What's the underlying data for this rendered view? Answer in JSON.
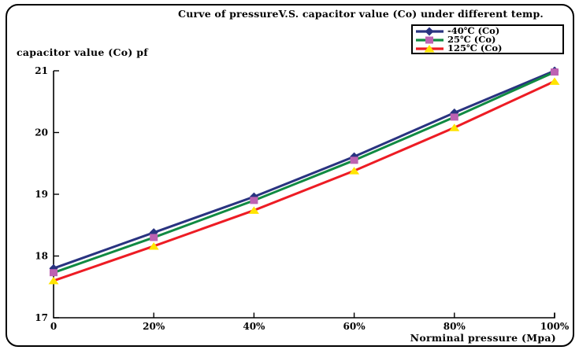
{
  "window": {
    "background": "#ffffff",
    "frame_border_color": "#000000"
  },
  "chart_data": {
    "type": "line",
    "title": "Curve of pressureV.S. capacitor value (Co) under different temp.",
    "xlabel": "Norminal pressure (Mpa)",
    "ylabel": "capacitor value (Co) pf",
    "x_tick_labels": [
      "0",
      "20%",
      "40%",
      "60%",
      "80%",
      "100%"
    ],
    "x_values": [
      0,
      20,
      40,
      60,
      80,
      100
    ],
    "y_ticks": [
      17,
      18,
      19,
      20,
      21
    ],
    "ylim": [
      17,
      21
    ],
    "grid": false,
    "legend_position": "top-right",
    "axis_color": "#000000",
    "series": [
      {
        "name": "-40℃ (Co)",
        "line_color": "#293380",
        "marker": "diamond",
        "marker_color": "#293380",
        "values": [
          17.8,
          18.38,
          18.96,
          19.61,
          20.32,
          21.0
        ]
      },
      {
        "name": "25℃ (Co)",
        "line_color": "#108a42",
        "marker": "square",
        "marker_color": "#bd62b2",
        "values": [
          17.73,
          18.3,
          18.9,
          19.55,
          20.25,
          20.98
        ]
      },
      {
        "name": "125℃ (Co)",
        "line_color": "#ed1c24",
        "marker": "triangle",
        "marker_color": "#ffe400",
        "values": [
          17.6,
          18.16,
          18.74,
          19.38,
          20.08,
          20.83
        ]
      }
    ]
  }
}
